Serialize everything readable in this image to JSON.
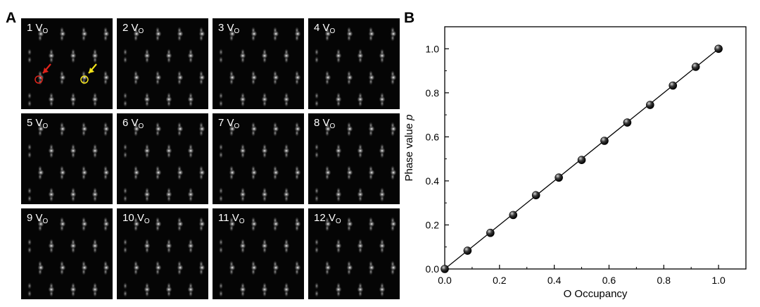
{
  "panel_a": {
    "label": "A",
    "tiles": [
      {
        "number": "1",
        "symbol": "V",
        "subscript": "O"
      },
      {
        "number": "2",
        "symbol": "V",
        "subscript": "O"
      },
      {
        "number": "3",
        "symbol": "V",
        "subscript": "O"
      },
      {
        "number": "4",
        "symbol": "V",
        "subscript": "O"
      },
      {
        "number": "5",
        "symbol": "V",
        "subscript": "O"
      },
      {
        "number": "6",
        "symbol": "V",
        "subscript": "O"
      },
      {
        "number": "7",
        "symbol": "V",
        "subscript": "O"
      },
      {
        "number": "8",
        "symbol": "V",
        "subscript": "O"
      },
      {
        "number": "9",
        "symbol": "V",
        "subscript": "O"
      },
      {
        "number": "10",
        "symbol": "V",
        "subscript": "O"
      },
      {
        "number": "11",
        "symbol": "V",
        "subscript": "O"
      },
      {
        "number": "12",
        "symbol": "V",
        "subscript": "O"
      }
    ],
    "markers": [
      {
        "tile": 1,
        "color": "#e0241b",
        "shape": "circle-with-arrow"
      },
      {
        "tile": 1,
        "color": "#f2e21a",
        "shape": "circle-with-arrow"
      }
    ]
  },
  "panel_b": {
    "label": "B"
  },
  "chart_data": {
    "type": "scatter",
    "xlabel": "O Occupancy",
    "ylabel_main": "Phase value ",
    "ylabel_italic": "p",
    "xlim": [
      0.0,
      1.1
    ],
    "ylim": [
      0.0,
      1.1
    ],
    "xticks": [
      "0.0",
      "0.2",
      "0.4",
      "0.6",
      "0.8",
      "1.0"
    ],
    "yticks": [
      "0.0",
      "0.2",
      "0.4",
      "0.6",
      "0.8",
      "1.0"
    ],
    "grid": false,
    "fit_line": {
      "x": [
        0.0,
        1.0
      ],
      "y": [
        0.0,
        1.0
      ]
    },
    "series": [
      {
        "x": [
          0.0,
          0.0833,
          0.1667,
          0.25,
          0.3333,
          0.4167,
          0.5,
          0.5833,
          0.6667,
          0.75,
          0.8333,
          0.9167,
          1.0
        ],
        "y": [
          0.0,
          0.083,
          0.164,
          0.245,
          0.335,
          0.415,
          0.495,
          0.582,
          0.665,
          0.745,
          0.833,
          0.918,
          1.0
        ]
      }
    ]
  }
}
